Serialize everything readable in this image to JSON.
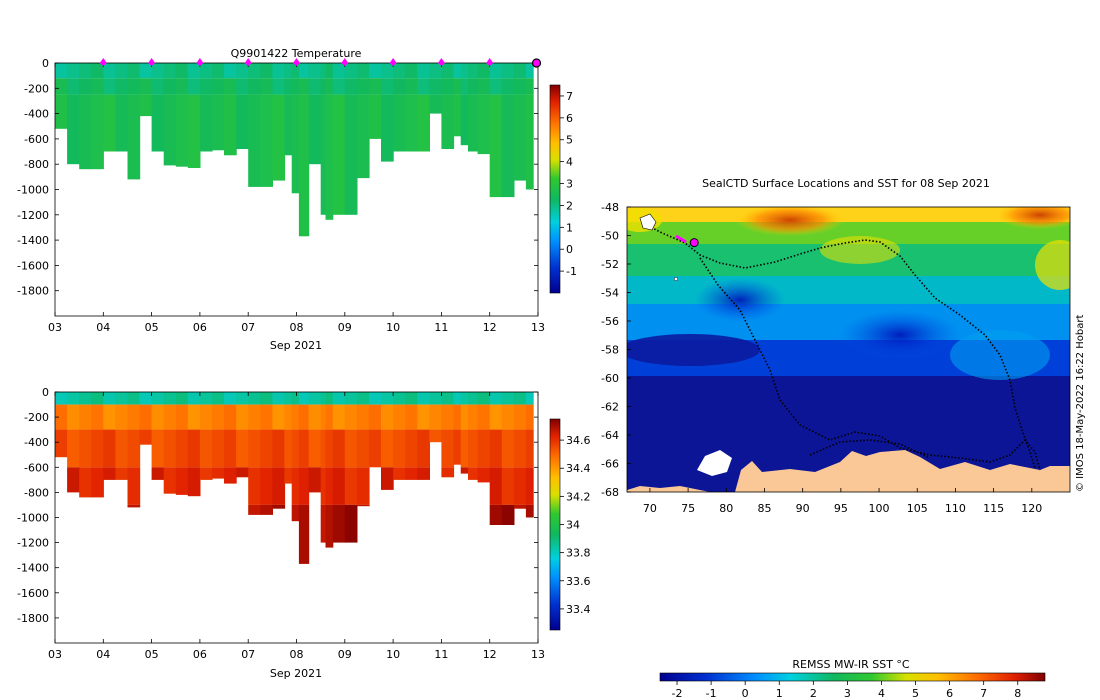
{
  "chart_data": [
    {
      "type": "heatmap",
      "title": "Q9901422  Temperature",
      "xlabel": "Sep 2021",
      "ylabel": "",
      "x_ticks": [
        "03",
        "04",
        "05",
        "06",
        "07",
        "08",
        "09",
        "10",
        "11",
        "12",
        "13"
      ],
      "x_range": [
        3,
        13
      ],
      "y_ticks": [
        0,
        -200,
        -400,
        -600,
        -800,
        -1000,
        -1200,
        -1400,
        -1600,
        -1800
      ],
      "y_range": [
        -2000,
        0
      ],
      "profile_markers_day": [
        4,
        5,
        6,
        7,
        8,
        9,
        10,
        11,
        12
      ],
      "current_profile_day": 13,
      "colorbar": {
        "ticks": [
          -1,
          0,
          1,
          2,
          3,
          4,
          5,
          6,
          7
        ],
        "range": [
          -2,
          7.5
        ]
      },
      "profile_days": [
        3.0,
        3.25,
        3.5,
        3.75,
        4.0,
        4.25,
        4.5,
        4.75,
        5.0,
        5.25,
        5.5,
        5.75,
        6.0,
        6.25,
        6.5,
        6.75,
        7.0,
        7.25,
        7.5,
        7.75,
        7.9,
        8.05,
        8.25,
        8.5,
        8.6,
        8.75,
        9.0,
        9.25,
        9.5,
        9.75,
        10.0,
        10.25,
        10.5,
        10.75,
        11.0,
        11.25,
        11.4,
        11.55,
        11.75,
        12.0,
        12.25,
        12.5,
        12.75
      ],
      "profile_depths": [
        -520,
        -800,
        -840,
        -840,
        -700,
        -700,
        -920,
        -420,
        -700,
        -810,
        -820,
        -830,
        -700,
        -690,
        -730,
        -680,
        -980,
        -980,
        -930,
        -730,
        -1030,
        -1370,
        -800,
        -1200,
        -1240,
        -1200,
        -1200,
        -910,
        -600,
        -780,
        -700,
        -700,
        -700,
        -400,
        -680,
        -580,
        -650,
        -700,
        -720,
        -1060,
        -1060,
        -930,
        -1000
      ],
      "temperature_layers": [
        {
          "top": 0,
          "bottom": -120,
          "value": 2.0
        },
        {
          "top": -120,
          "bottom": -250,
          "value": 2.3
        },
        {
          "top": -250,
          "bottom": -2000,
          "value": 2.6
        }
      ]
    },
    {
      "type": "heatmap",
      "title": "",
      "xlabel": "Sep 2021",
      "ylabel": "",
      "x_ticks": [
        "03",
        "04",
        "05",
        "06",
        "07",
        "08",
        "09",
        "10",
        "11",
        "12",
        "13"
      ],
      "x_range": [
        3,
        13
      ],
      "y_ticks": [
        0,
        -200,
        -400,
        -600,
        -800,
        -1000,
        -1200,
        -1400,
        -1600,
        -1800
      ],
      "y_range": [
        -2000,
        0
      ],
      "colorbar": {
        "ticks": [
          33.4,
          33.6,
          33.8,
          34,
          34.2,
          34.4,
          34.6
        ],
        "range": [
          33.25,
          34.75
        ]
      },
      "salinity_layers": [
        {
          "top": 0,
          "bottom": -100,
          "value": 33.85
        },
        {
          "top": -100,
          "bottom": -300,
          "value": 34.45
        },
        {
          "top": -300,
          "bottom": -600,
          "value": 34.55
        },
        {
          "top": -600,
          "bottom": -900,
          "value": 34.62
        },
        {
          "top": -900,
          "bottom": -2000,
          "value": 34.7
        }
      ]
    },
    {
      "type": "heatmap",
      "title": "SealCTD Surface Locations and SST for 08 Sep 2021",
      "xlabel": "",
      "ylabel": "",
      "x_ticks": [
        70,
        75,
        80,
        85,
        90,
        95,
        100,
        105,
        110,
        115,
        120
      ],
      "x_range": [
        67,
        125
      ],
      "y_ticks": [
        -48,
        -50,
        -52,
        -54,
        -56,
        -58,
        -60,
        -62,
        -64,
        -66,
        -68
      ],
      "y_range": [
        -68,
        -48
      ],
      "highlight_location": {
        "lon": 75.8,
        "lat": -50.5
      },
      "colorbar": {
        "label": "REMSS MW-IR SST °C",
        "ticks": [
          -2,
          -1,
          0,
          1,
          2,
          3,
          4,
          5,
          6,
          7,
          8
        ],
        "range": [
          -2.5,
          8.8
        ]
      },
      "credit": "© IMOS 18-May-2022 16:22 Hobart"
    }
  ]
}
